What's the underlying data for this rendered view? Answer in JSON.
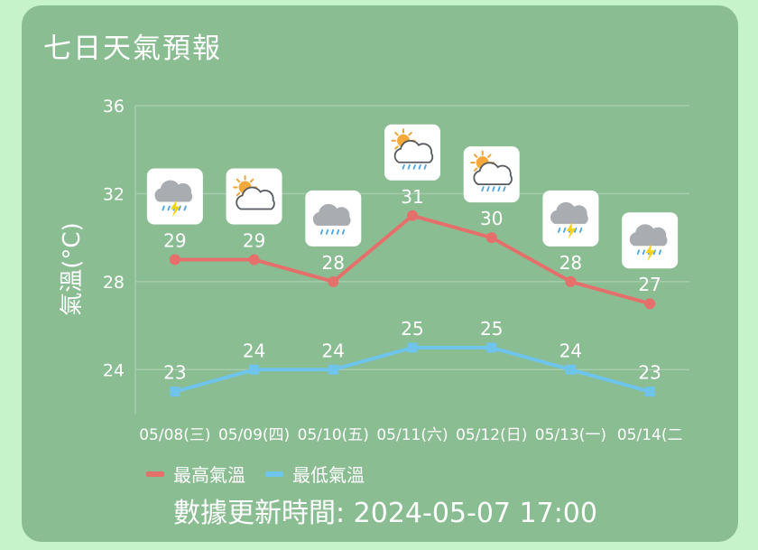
{
  "title": "七日天氣預報",
  "update_text": "數據更新時間: 2024-05-07 17:00",
  "colors": {
    "high": "#e46f6b",
    "low": "#6fc4ec",
    "card": "#8bbd93",
    "page": "#c6f3c8",
    "icon_bg": "#ffffff"
  },
  "chart_data": {
    "type": "line",
    "title": "",
    "xlabel": "",
    "ylabel": "氣溫(°C)",
    "ylim": [
      22,
      36
    ],
    "yticks": [
      24,
      28,
      32,
      36
    ],
    "grid": true,
    "legend": "bottom-left",
    "categories": [
      "05/08(三)",
      "05/09(四)",
      "05/10(五)",
      "05/11(六)",
      "05/12(日)",
      "05/13(一)",
      "05/14(二"
    ],
    "series": [
      {
        "name": "最高氣溫",
        "color": "#e46f6b",
        "values": [
          29,
          29,
          28,
          31,
          30,
          28,
          27
        ]
      },
      {
        "name": "最低氣溫",
        "color": "#6fc4ec",
        "values": [
          23,
          24,
          24,
          25,
          25,
          24,
          23
        ]
      }
    ],
    "icons": [
      "thunderstorm-icon",
      "partly-cloudy-icon",
      "rain-icon",
      "partly-cloudy-rain-icon",
      "partly-cloudy-rain-icon",
      "thunderstorm-icon",
      "thunderstorm-icon"
    ]
  }
}
